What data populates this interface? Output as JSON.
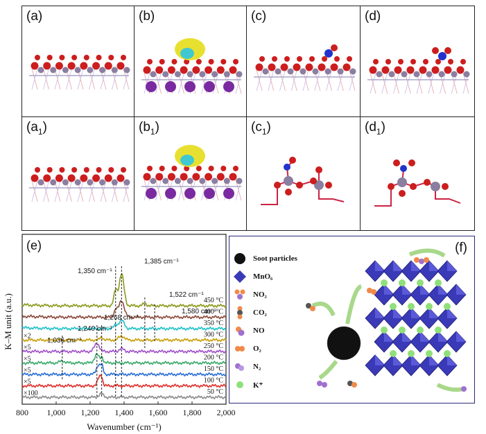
{
  "panels_top": [
    {
      "label": "(a)"
    },
    {
      "label": "(b)"
    },
    {
      "label": "(c)"
    },
    {
      "label": "(d)"
    }
  ],
  "panels_mid": [
    {
      "label": "(a",
      "sub": "1",
      "close": ")"
    },
    {
      "label": "(b",
      "sub": "1",
      "close": ")"
    },
    {
      "label": "(c",
      "sub": "1",
      "close": ")"
    },
    {
      "label": "(d",
      "sub": "1",
      "close": ")"
    }
  ],
  "spectrum_panel": {
    "label": "(e)",
    "ylabel": "K–M unit (a.u.)",
    "xlabel": "Wavenumber (cm⁻¹)",
    "annotations": [
      "1,385 cm⁻¹",
      "1,350 cm⁻¹",
      "1,522 cm⁻¹",
      "1,580 cm⁻¹",
      "1,268 cm⁻¹",
      "1,240 cm⁻¹",
      "1,036 cm⁻¹"
    ]
  },
  "chart_data": {
    "type": "line",
    "xlabel": "Wavenumber (cm⁻¹)",
    "ylabel": "K–M unit (a.u.)",
    "xlim": [
      800,
      2000
    ],
    "xticks": [
      "800",
      "1,000",
      "1,200",
      "1,400",
      "1,600",
      "1,800",
      "2,000"
    ],
    "series": [
      {
        "name": "50 °C",
        "multiplier": "×100",
        "color": "#8c8c8c"
      },
      {
        "name": "100 °C",
        "multiplier": "×5",
        "color": "#e0302c"
      },
      {
        "name": "150 °C",
        "multiplier": "×5",
        "color": "#2a6fd6"
      },
      {
        "name": "200 °C",
        "multiplier": "×5",
        "color": "#3aa86a"
      },
      {
        "name": "250 °C",
        "multiplier": "×5",
        "color": "#a050c8"
      },
      {
        "name": "300 °C",
        "multiplier": "×2",
        "color": "#c8a010"
      },
      {
        "name": "350 °C",
        "multiplier": "",
        "color": "#20c0c8"
      },
      {
        "name": "400 °C",
        "multiplier": "",
        "color": "#8a4a3a"
      },
      {
        "name": "450 °C",
        "multiplier": "",
        "color": "#8a9a1a"
      }
    ]
  },
  "schematic_panel": {
    "label": "(f)",
    "legend": [
      {
        "text": "Soot particles",
        "icon": "soot-particle-icon"
      },
      {
        "text": "MnO₆",
        "icon": "mno6-octahedron-icon"
      },
      {
        "text": "NO₂",
        "icon": "no2-molecule-icon"
      },
      {
        "text": "CO₂",
        "icon": "co2-molecule-icon"
      },
      {
        "text": "NO",
        "icon": "no-molecule-icon"
      },
      {
        "text": "O₂",
        "icon": "o2-molecule-icon"
      },
      {
        "text": "N₂",
        "icon": "n2-molecule-icon"
      },
      {
        "text": "K⁺",
        "icon": "k-ion-icon"
      }
    ]
  },
  "colors": {
    "oxygen": "#cc1e1e",
    "manganese": "#8a7fa0",
    "potassium": "#7a2aa0",
    "nitrogen": "#2233cc",
    "octahedron": "#3a3ab8",
    "k_ion": "#8fe07a",
    "arrow": "#a8d88a"
  }
}
